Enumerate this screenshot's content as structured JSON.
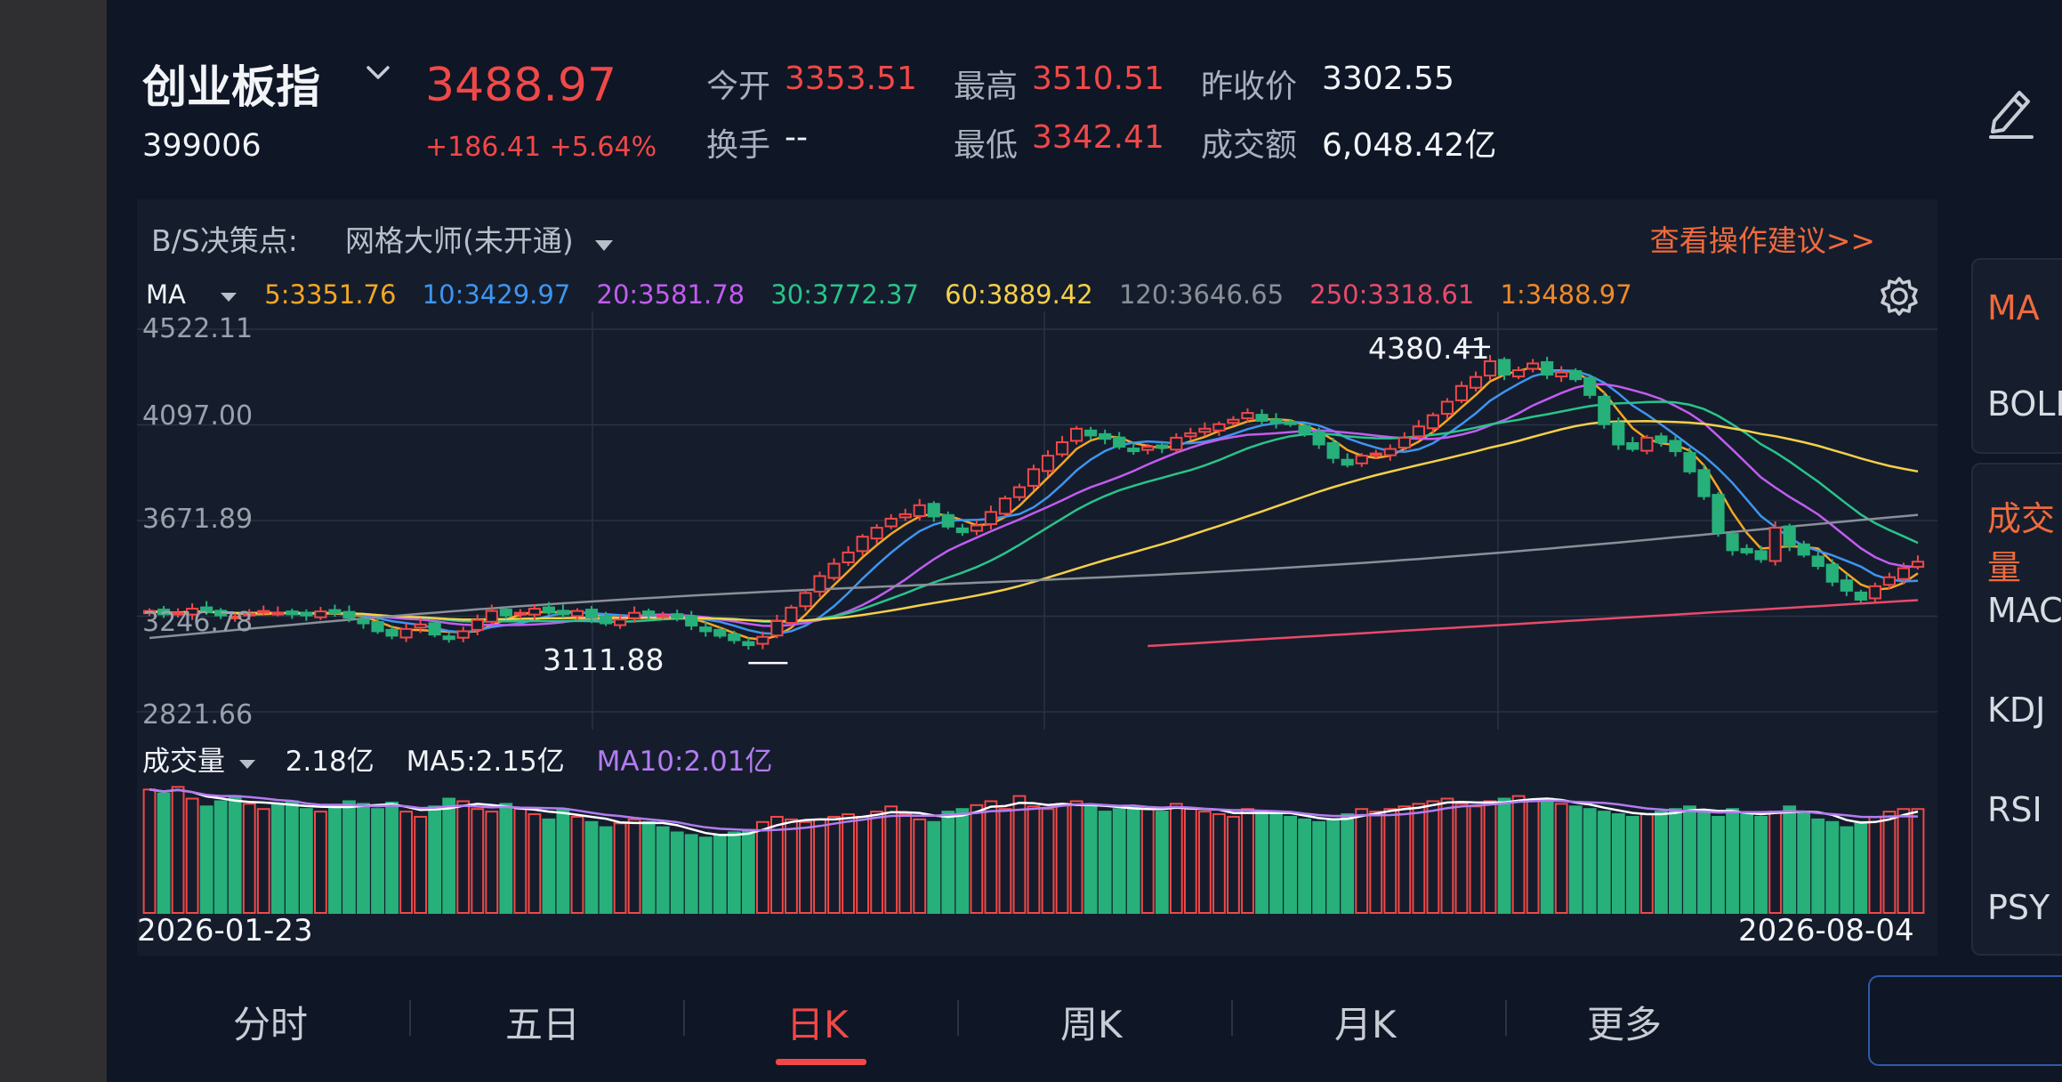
{
  "header": {
    "name": "创业板指",
    "code": "399006",
    "price": "3488.97",
    "change": "+186.41 +5.64%",
    "stats": {
      "open_label": "今开",
      "open_value": "3353.51",
      "high_label": "最高",
      "high_value": "3510.51",
      "prev_label": "昨收价",
      "prev_value": "3302.55",
      "turnover_label": "换手",
      "turnover_value": "--",
      "low_label": "最低",
      "low_value": "3342.41",
      "amount_label": "成交额",
      "amount_value": "6,048.42亿"
    }
  },
  "bs_bar": {
    "label": "B/S决策点:",
    "strategy": "网格大师(未开通)",
    "advice": "查看操作建议>>"
  },
  "ma_legend": {
    "name": "MA",
    "items": [
      {
        "text": "5:3351.76",
        "color": "#f5a623"
      },
      {
        "text": "10:3429.97",
        "color": "#3e95f0"
      },
      {
        "text": "20:3581.78",
        "color": "#c25cf0"
      },
      {
        "text": "30:3772.37",
        "color": "#29c48a"
      },
      {
        "text": "60:3889.42",
        "color": "#f5d04a"
      },
      {
        "text": "120:3646.65",
        "color": "#8a8f98"
      },
      {
        "text": "250:3318.61",
        "color": "#e94a6a"
      },
      {
        "text": "1:3488.97",
        "color": "#f08a2a"
      }
    ]
  },
  "volume_legend": {
    "name": "成交量",
    "value": "2.18亿",
    "ma5": "MA5:2.15亿",
    "ma10": "MA10:2.01亿"
  },
  "chart_data": {
    "type": "candlestick",
    "y_ticks": [
      "4522.11",
      "4097.00",
      "3671.89",
      "3246.78",
      "2821.66"
    ],
    "ylim": [
      2821.66,
      4522.11
    ],
    "x_start_label": "2026-01-23",
    "x_end_label": "2026-08-04",
    "annotations": [
      {
        "text": "4380.41",
        "type": "max"
      },
      {
        "text": "3111.88",
        "type": "min"
      }
    ],
    "close_path": [
      3270,
      3255,
      3262,
      3280,
      3265,
      3250,
      3245,
      3258,
      3270,
      3262,
      3255,
      3250,
      3268,
      3260,
      3240,
      3215,
      3180,
      3160,
      3190,
      3210,
      3165,
      3145,
      3180,
      3230,
      3270,
      3250,
      3262,
      3280,
      3265,
      3255,
      3270,
      3240,
      3215,
      3232,
      3262,
      3255,
      3250,
      3240,
      3205,
      3180,
      3160,
      3140,
      3118,
      3155,
      3225,
      3285,
      3350,
      3425,
      3480,
      3530,
      3600,
      3640,
      3680,
      3700,
      3740,
      3690,
      3645,
      3620,
      3650,
      3710,
      3770,
      3820,
      3900,
      3960,
      4020,
      4080,
      4050,
      4035,
      4000,
      3980,
      4000,
      3995,
      4040,
      4060,
      4080,
      4100,
      4120,
      4150,
      4115,
      4105,
      4100,
      4060,
      4010,
      3950,
      3920,
      3960,
      3970,
      3990,
      4040,
      4090,
      4140,
      4200,
      4270,
      4310,
      4380,
      4320,
      4340,
      4370,
      4320,
      4330,
      4300,
      4230,
      4100,
      4010,
      3990,
      4040,
      4020,
      3980,
      3890,
      3780,
      3620,
      3540,
      3530,
      3500,
      3640,
      3560,
      3520,
      3470,
      3400,
      3360,
      3320,
      3380,
      3420,
      3460,
      3488.97
    ],
    "ma_series": [
      {
        "period": "MA5",
        "color": "#f5a623",
        "lag": 3,
        "offset": 0
      },
      {
        "period": "MA10",
        "color": "#3e95f0",
        "lag": 6,
        "offset": 0
      },
      {
        "period": "MA20",
        "color": "#c25cf0",
        "lag": 12,
        "offset": 0
      },
      {
        "period": "MA30",
        "color": "#29c48a",
        "lag": 18,
        "offset": 0
      },
      {
        "period": "MA60",
        "color": "#f5d04a",
        "lag": 40,
        "offset": 0
      },
      {
        "period": "MA120",
        "color": "#8a8f98",
        "lag": 90,
        "offset": 0
      },
      {
        "period": "MA250",
        "color": "#e94a6a",
        "lag": 200,
        "offset": 0
      }
    ],
    "volume_relative": [
      0.95,
      0.92,
      0.97,
      0.88,
      0.82,
      0.86,
      0.9,
      0.84,
      0.8,
      0.83,
      0.86,
      0.8,
      0.78,
      0.82,
      0.86,
      0.84,
      0.8,
      0.85,
      0.78,
      0.74,
      0.82,
      0.88,
      0.86,
      0.8,
      0.78,
      0.84,
      0.8,
      0.76,
      0.72,
      0.8,
      0.74,
      0.7,
      0.66,
      0.69,
      0.72,
      0.7,
      0.66,
      0.62,
      0.6,
      0.58,
      0.6,
      0.62,
      0.64,
      0.7,
      0.74,
      0.72,
      0.7,
      0.72,
      0.74,
      0.76,
      0.74,
      0.78,
      0.82,
      0.76,
      0.72,
      0.7,
      0.78,
      0.8,
      0.83,
      0.86,
      0.8,
      0.9,
      0.82,
      0.8,
      0.84,
      0.86,
      0.82,
      0.78,
      0.8,
      0.82,
      0.8,
      0.78,
      0.84,
      0.8,
      0.78,
      0.76,
      0.74,
      0.8,
      0.78,
      0.76,
      0.74,
      0.72,
      0.7,
      0.72,
      0.76,
      0.8,
      0.78,
      0.8,
      0.82,
      0.84,
      0.86,
      0.88,
      0.84,
      0.82,
      0.86,
      0.88,
      0.9,
      0.86,
      0.88,
      0.84,
      0.82,
      0.8,
      0.78,
      0.76,
      0.74,
      0.76,
      0.78,
      0.8,
      0.82,
      0.78,
      0.74,
      0.8,
      0.76,
      0.74,
      0.78,
      0.82,
      0.78,
      0.72,
      0.7,
      0.66,
      0.7,
      0.74,
      0.78,
      0.8,
      0.8
    ]
  },
  "tabs": [
    "分时",
    "五日",
    "日K",
    "周K",
    "月K",
    "更多"
  ],
  "active_tab": 2,
  "right_indicators": [
    "MA",
    "BOLL",
    "成交量",
    "MACD",
    "KDJ",
    "RSI",
    "PSY"
  ]
}
